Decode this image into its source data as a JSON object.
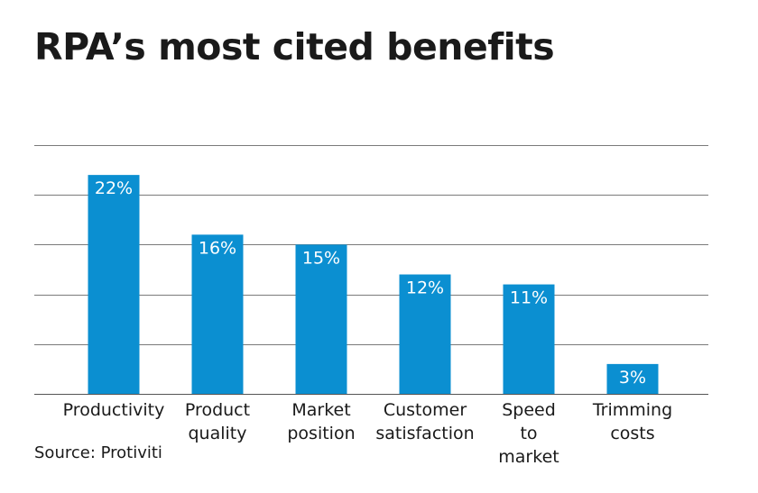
{
  "title": "RPA’s most cited benefits",
  "source": "Source: Protiviti",
  "colors": {
    "bar": "#0b8fd1",
    "label": "#ffffff",
    "text": "#1a1a1a",
    "grid": "#7a7a7a"
  },
  "chart_data": {
    "type": "bar",
    "title": "RPA’s most cited benefits",
    "categories": [
      [
        "Productivity"
      ],
      [
        "Product",
        "quality"
      ],
      [
        "Market",
        "position"
      ],
      [
        "Customer",
        "satisfaction"
      ],
      [
        "Speed",
        "to",
        "market"
      ],
      [
        "Trimming",
        "costs"
      ]
    ],
    "values": [
      22,
      16,
      15,
      12,
      11,
      3
    ],
    "data_labels": [
      "22%",
      "16%",
      "15%",
      "12%",
      "11%",
      "3%"
    ],
    "ylim": [
      0,
      25
    ],
    "y_gridlines": [
      5,
      10,
      15,
      20,
      25
    ],
    "xlabel": "",
    "ylabel": "",
    "grid": true
  }
}
